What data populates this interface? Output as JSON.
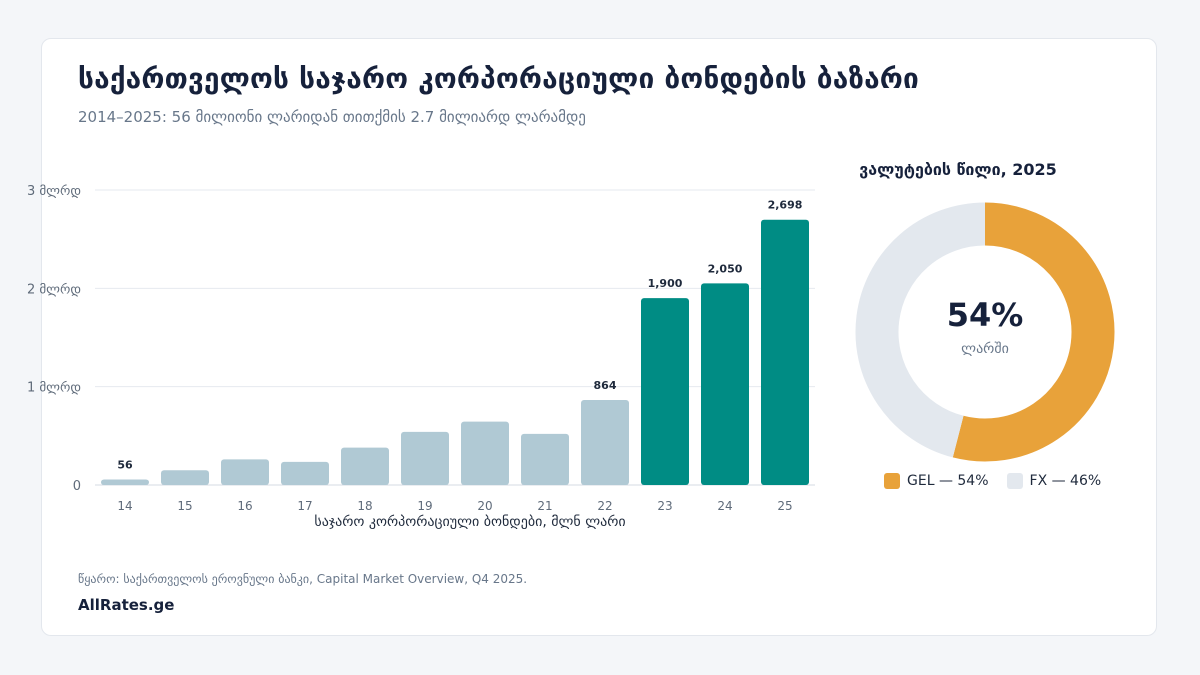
{
  "header": {
    "title": "საქართველოს საჯარო კორპორაციული ბონდების ბაზარი",
    "subtitle": "2014–2025: 56 მილიონი ლარიდან თითქმის 2.7 მილიარდ ლარამდე"
  },
  "chart_data": [
    {
      "type": "bar",
      "categories": [
        "14",
        "15",
        "16",
        "17",
        "18",
        "19",
        "20",
        "21",
        "22",
        "23",
        "24",
        "25"
      ],
      "values": [
        56,
        150,
        260,
        235,
        380,
        540,
        645,
        520,
        864,
        1900,
        2050,
        2698
      ],
      "value_labels": [
        "56",
        "",
        "",
        "",
        "",
        "",
        "",
        "",
        "864",
        "1,900",
        "2,050",
        "2,698"
      ],
      "highlight": [
        false,
        false,
        false,
        false,
        false,
        false,
        false,
        false,
        false,
        true,
        true,
        true
      ],
      "xlabel": "საჯარო კორპორაციული ბონდები, მლნ ლარი",
      "ylabel": "",
      "ylim": [
        0,
        3000
      ],
      "yticks": [
        0,
        1000,
        2000,
        3000
      ],
      "ytick_labels": [
        "0",
        "1 მლრდ",
        "2 მლრდ",
        "3 მლრდ"
      ],
      "grid": true,
      "colors": {
        "base": "#b0c9d4",
        "highlight": "#008c84"
      }
    },
    {
      "type": "pie",
      "title": "ვალუტების წილი, 2025",
      "labels": [
        "GEL",
        "FX"
      ],
      "values": [
        54,
        46
      ],
      "legend_labels": [
        "GEL — 54%",
        "FX — 46%"
      ],
      "center_value": "54%",
      "center_label": "ლარში",
      "colors": [
        "#e8a23a",
        "#e3e8ee"
      ],
      "legend_position": "bottom"
    }
  ],
  "footer": {
    "source": "წყარო: საქართველოს ეროვნული ბანკი, Capital Market Overview, Q4 2025.",
    "brand": "AllRates.ge"
  }
}
